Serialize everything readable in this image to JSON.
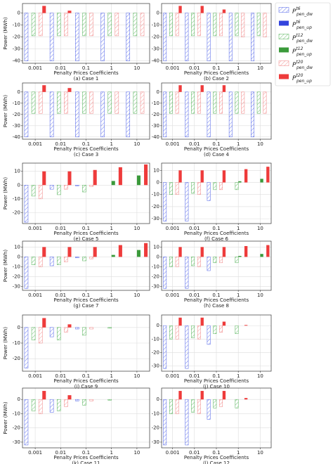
{
  "legend": [
    {
      "name": "P",
      "sup": "t6",
      "sub": "pen_dw",
      "color": "#4a5ee8",
      "hatch": true
    },
    {
      "name": "P",
      "sup": "t6",
      "sub": "pen_up",
      "color": "#3344dd",
      "hatch": false
    },
    {
      "name": "P",
      "sup": "t12",
      "sub": "pen_dw",
      "color": "#4caf50",
      "hatch": true
    },
    {
      "name": "P",
      "sup": "t12",
      "sub": "pen_up",
      "color": "#3a9a3a",
      "hatch": false
    },
    {
      "name": "P",
      "sup": "t20",
      "sub": "pen_dw",
      "color": "#f08080",
      "hatch": true
    },
    {
      "name": "P",
      "sup": "t20",
      "sub": "pen_up",
      "color": "#ee3b3b",
      "hatch": false
    }
  ],
  "chart_data": [
    {
      "type": "bar",
      "caption": "(a) Case 1",
      "xlabel": "Penalty Prices Coefficients",
      "ylabel": "Power (MWh)",
      "categories": [
        "0.001",
        "0.01",
        "0.1",
        "1",
        "10"
      ],
      "ylim": [
        -42,
        8
      ],
      "yticks": [
        -40,
        -30,
        -20,
        -10,
        0
      ],
      "grid": true,
      "series": [
        {
          "values": [
            -40,
            -40,
            -40,
            -40,
            -40
          ]
        },
        {
          "values": [
            0,
            0,
            0,
            0,
            0
          ]
        },
        {
          "values": [
            -19,
            -19,
            -19,
            -19,
            -19
          ]
        },
        {
          "values": [
            0,
            0,
            0,
            0,
            0
          ]
        },
        {
          "values": [
            -19,
            -19,
            -19,
            -19,
            -19
          ]
        },
        {
          "values": [
            6,
            2,
            0,
            0,
            0
          ]
        }
      ]
    },
    {
      "type": "bar",
      "caption": "(b) Case 2",
      "xlabel": "Penalty Prices Coefficients",
      "categories": [
        "0.001",
        "0.01",
        "0.1",
        "1",
        "10"
      ],
      "ylim": [
        -42,
        8
      ],
      "yticks": [
        -40,
        -30,
        -20,
        -10,
        0
      ],
      "grid": true,
      "series": [
        {
          "values": [
            -40,
            -40,
            -40,
            -40,
            -40
          ]
        },
        {
          "values": [
            0,
            0,
            0,
            0,
            0
          ]
        },
        {
          "values": [
            -19,
            -19,
            -19,
            -19,
            -19
          ]
        },
        {
          "values": [
            0,
            0,
            0,
            0,
            0
          ]
        },
        {
          "values": [
            -19,
            -19,
            -19,
            -20,
            -20
          ]
        },
        {
          "values": [
            6,
            6,
            3,
            0,
            0
          ]
        }
      ]
    },
    {
      "type": "bar",
      "caption": "(c) Case 3",
      "xlabel": "Penalty Prices Coefficients",
      "ylabel": "Power (MWh)",
      "categories": [
        "0.001",
        "0.01",
        "0.1",
        "1",
        "10"
      ],
      "ylim": [
        -42,
        8
      ],
      "yticks": [
        -40,
        -30,
        -20,
        -10,
        0
      ],
      "grid": true,
      "series": [
        {
          "values": [
            -40,
            -40,
            -40,
            -40,
            -40
          ]
        },
        {
          "values": [
            0,
            0,
            0,
            0,
            0
          ]
        },
        {
          "values": [
            -19,
            -19,
            -19,
            -19,
            -19
          ]
        },
        {
          "values": [
            0,
            0,
            0,
            0,
            0
          ]
        },
        {
          "values": [
            -19,
            -19,
            -19,
            -19,
            -19
          ]
        },
        {
          "values": [
            6,
            3.5,
            0,
            0,
            0
          ]
        }
      ]
    },
    {
      "type": "bar",
      "caption": "(d) Case 4",
      "xlabel": "Penalty Prices Coefficients",
      "categories": [
        "0.001",
        "0.01",
        "0.1",
        "1",
        "10"
      ],
      "ylim": [
        -42,
        8
      ],
      "yticks": [
        -40,
        -30,
        -20,
        -10,
        0
      ],
      "grid": true,
      "series": [
        {
          "values": [
            -40,
            -40,
            -40,
            -40,
            -40
          ]
        },
        {
          "values": [
            0,
            0,
            0,
            0,
            0
          ]
        },
        {
          "values": [
            -19,
            -19,
            -19,
            -19,
            -19
          ]
        },
        {
          "values": [
            0,
            0,
            0,
            0,
            0
          ]
        },
        {
          "values": [
            -19,
            -19,
            -19,
            -19,
            -19
          ]
        },
        {
          "values": [
            6,
            6,
            6,
            0,
            0
          ]
        }
      ]
    },
    {
      "type": "bar",
      "caption": "(e) Case 5",
      "xlabel": "Penalty Prices Coefficients",
      "ylabel": "Power (MWh)",
      "categories": [
        "0.001",
        "0.01",
        "0.1",
        "1",
        "10"
      ],
      "ylim": [
        -28,
        16
      ],
      "yticks": [
        -20,
        -10,
        0,
        10
      ],
      "grid": true,
      "series": [
        {
          "values": [
            -27,
            -3,
            -0.5,
            0,
            0
          ]
        },
        {
          "values": [
            0,
            0,
            0,
            0,
            0
          ]
        },
        {
          "values": [
            -8,
            -7,
            -5,
            0,
            0
          ]
        },
        {
          "values": [
            0,
            0,
            0,
            3,
            7
          ]
        },
        {
          "values": [
            -10,
            -3,
            -1,
            0,
            0
          ]
        },
        {
          "values": [
            10,
            10,
            11,
            13,
            15
          ]
        }
      ]
    },
    {
      "type": "bar",
      "caption": "(f) Case 6",
      "xlabel": "Penalty Prices Coefficients",
      "categories": [
        "0.001",
        "0.01",
        "0.1",
        "1",
        "10"
      ],
      "ylim": [
        -34,
        16
      ],
      "yticks": [
        -30,
        -20,
        -10,
        0,
        10
      ],
      "grid": true,
      "series": [
        {
          "values": [
            -32,
            -32,
            -15,
            0,
            0
          ]
        },
        {
          "values": [
            0,
            0,
            0,
            0,
            0
          ]
        },
        {
          "values": [
            -10,
            -9,
            -6,
            -6,
            0
          ]
        },
        {
          "values": [
            0,
            0,
            0,
            1,
            3
          ]
        },
        {
          "values": [
            -10,
            -10,
            -6,
            0,
            0
          ]
        },
        {
          "values": [
            10,
            10,
            10,
            11,
            13
          ]
        }
      ]
    },
    {
      "type": "bar",
      "caption": "(g) Case 7",
      "xlabel": "Penalty Prices Coefficients",
      "ylabel": "Power (MWh)",
      "categories": [
        "0.001",
        "0.01",
        "0.1",
        "1",
        "10"
      ],
      "ylim": [
        -34,
        16
      ],
      "yticks": [
        -30,
        -20,
        -10,
        0,
        10
      ],
      "grid": true,
      "series": [
        {
          "values": [
            -32,
            -9,
            -1,
            0,
            0
          ]
        },
        {
          "values": [
            0,
            0,
            0,
            0,
            0
          ]
        },
        {
          "values": [
            -8,
            -8,
            -4,
            0,
            0
          ]
        },
        {
          "values": [
            0,
            0,
            0,
            2,
            7
          ]
        },
        {
          "values": [
            -10,
            -5,
            -2,
            0,
            0
          ]
        },
        {
          "values": [
            10,
            10,
            10,
            12,
            14
          ]
        }
      ]
    },
    {
      "type": "bar",
      "caption": "(h) Case 8",
      "xlabel": "Penalty Prices Coefficients",
      "categories": [
        "0.001",
        "0.01",
        "0.1",
        "1",
        "10"
      ],
      "ylim": [
        -34,
        16
      ],
      "yticks": [
        -30,
        -20,
        -10,
        0,
        10
      ],
      "grid": true,
      "series": [
        {
          "values": [
            -32,
            -32,
            -14,
            0,
            0
          ]
        },
        {
          "values": [
            0,
            0,
            0,
            0,
            0
          ]
        },
        {
          "values": [
            -10,
            -9,
            -6,
            -6,
            0
          ]
        },
        {
          "values": [
            0,
            0,
            0,
            1,
            3
          ]
        },
        {
          "values": [
            -10,
            -10,
            -6,
            0,
            0
          ]
        },
        {
          "values": [
            10,
            10,
            10,
            11,
            12
          ]
        }
      ]
    },
    {
      "type": "bar",
      "caption": "(i) Case 9",
      "xlabel": "Penalty Prices Coefficients",
      "ylabel": "Power (MWh)",
      "categories": [
        "0.001",
        "0.01",
        "0.1",
        "1",
        "10"
      ],
      "ylim": [
        -28,
        8
      ],
      "yticks": [
        -20,
        -10,
        0
      ],
      "grid": true,
      "series": [
        {
          "values": [
            -26,
            -6,
            -1,
            0,
            0
          ]
        },
        {
          "values": [
            0,
            0,
            0,
            0,
            0
          ]
        },
        {
          "values": [
            -8,
            -8,
            -5,
            -0.5,
            0
          ]
        },
        {
          "values": [
            0,
            0,
            0,
            0,
            0
          ]
        },
        {
          "values": [
            -10,
            -3,
            -1,
            0,
            0
          ]
        },
        {
          "values": [
            6,
            2,
            0,
            0,
            0
          ]
        }
      ]
    },
    {
      "type": "bar",
      "caption": "(j) Case 10",
      "xlabel": "Penalty Prices Coefficients",
      "categories": [
        "0.001",
        "0.01",
        "0.1",
        "1",
        "10"
      ],
      "ylim": [
        -34,
        8
      ],
      "yticks": [
        -30,
        -20,
        -10,
        0
      ],
      "grid": true,
      "series": [
        {
          "values": [
            -32,
            -32,
            -14,
            0,
            0
          ]
        },
        {
          "values": [
            0,
            0,
            0,
            0,
            0
          ]
        },
        {
          "values": [
            -10,
            -9,
            -6,
            -6,
            0
          ]
        },
        {
          "values": [
            0,
            0,
            0,
            0,
            0
          ]
        },
        {
          "values": [
            -10,
            -10,
            -5,
            0,
            0
          ]
        },
        {
          "values": [
            6,
            6,
            3,
            0.5,
            0
          ]
        }
      ]
    },
    {
      "type": "bar",
      "caption": "(k) Case 11",
      "xlabel": "Penalty Prices Coefficients",
      "ylabel": "Power (MWh)",
      "categories": [
        "0.001",
        "0.01",
        "0.1",
        "1",
        "10"
      ],
      "ylim": [
        -34,
        8
      ],
      "yticks": [
        -30,
        -20,
        -10,
        0
      ],
      "grid": true,
      "series": [
        {
          "values": [
            -32,
            -9,
            -1,
            0,
            0
          ]
        },
        {
          "values": [
            0,
            0,
            0,
            0,
            0
          ]
        },
        {
          "values": [
            -8,
            -8,
            -4,
            -0.5,
            0
          ]
        },
        {
          "values": [
            0,
            0,
            0,
            0,
            0
          ]
        },
        {
          "values": [
            -10,
            -5,
            -1,
            0,
            0
          ]
        },
        {
          "values": [
            6,
            3,
            0,
            0,
            0
          ]
        }
      ]
    },
    {
      "type": "bar",
      "caption": "(l) Case 12",
      "xlabel": "Penalty Prices Coefficients",
      "categories": [
        "0.001",
        "0.01",
        "0.1",
        "1",
        "10"
      ],
      "ylim": [
        -34,
        8
      ],
      "yticks": [
        -30,
        -20,
        -10,
        0
      ],
      "grid": true,
      "series": [
        {
          "values": [
            -32,
            -32,
            -14,
            0,
            0
          ]
        },
        {
          "values": [
            0,
            0,
            0,
            0,
            0
          ]
        },
        {
          "values": [
            -10,
            -9,
            -6,
            -6,
            0
          ]
        },
        {
          "values": [
            0,
            0,
            0,
            0,
            0
          ]
        },
        {
          "values": [
            -10,
            -10,
            -5,
            0,
            0
          ]
        },
        {
          "values": [
            6,
            6,
            6,
            1,
            0
          ]
        }
      ]
    }
  ]
}
